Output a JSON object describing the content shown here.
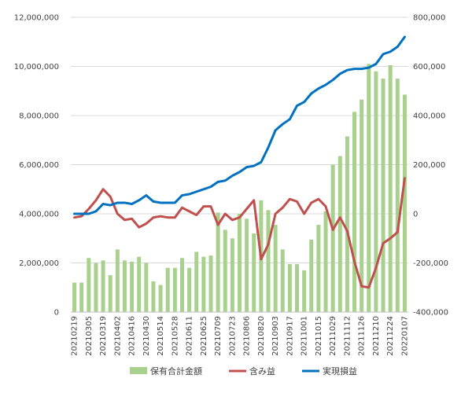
{
  "chart_data": {
    "type": "bar+line",
    "title": "",
    "x_tick_labels": [
      "20210219",
      "20210305",
      "20210319",
      "20210402",
      "20210416",
      "20210430",
      "20210514",
      "20210528",
      "20210611",
      "20210625",
      "20210709",
      "20210723",
      "20210806",
      "20210820",
      "20210903",
      "20210917",
      "20211001",
      "20211015",
      "20211029",
      "20211112",
      "20211126",
      "20211210",
      "20211224",
      "20220107"
    ],
    "y_left": {
      "min": 0,
      "max": 12000000,
      "step": 2000000,
      "tick_labels": [
        "0",
        "2,000,000",
        "4,000,000",
        "6,000,000",
        "8,000,000",
        "10,000,000",
        "12,000,000"
      ]
    },
    "y_right": {
      "min": -400000,
      "max": 800000,
      "step": 200000,
      "tick_labels": [
        "-400,000",
        "-200,000",
        "0",
        "200,000",
        "400,000",
        "600,000",
        "800,000"
      ]
    },
    "legend_position": "bottom",
    "series": [
      {
        "name": "保有合計金額",
        "kind": "bar",
        "axis": "left",
        "color": "#a9d18e",
        "values": [
          1200000,
          1200000,
          2200000,
          2000000,
          2100000,
          1500000,
          2550000,
          2100000,
          2050000,
          2250000,
          2000000,
          1250000,
          1100000,
          1800000,
          1800000,
          2200000,
          1800000,
          2450000,
          2250000,
          2300000,
          4050000,
          3350000,
          3000000,
          4000000,
          3800000,
          3200000,
          4550000,
          4150000,
          3550000,
          2550000,
          1950000,
          1950000,
          1700000,
          2950000,
          3550000,
          4100000,
          6000000,
          6350000,
          7150000,
          8150000,
          8650000,
          10100000,
          9800000,
          9500000,
          10050000,
          9500000,
          8850000
        ]
      },
      {
        "name": "含み益",
        "kind": "line",
        "axis": "right",
        "color": "#c0504d",
        "values": [
          -15000,
          -10000,
          20000,
          55000,
          100000,
          70000,
          0,
          -25000,
          -20000,
          -55000,
          -40000,
          -15000,
          -10000,
          -15000,
          -15000,
          25000,
          10000,
          -5000,
          30000,
          30000,
          -45000,
          0,
          -25000,
          -15000,
          20000,
          55000,
          -185000,
          -125000,
          0,
          25000,
          60000,
          50000,
          0,
          45000,
          60000,
          30000,
          -65000,
          -15000,
          -70000,
          -195000,
          -295000,
          -300000,
          -220000,
          -120000,
          -100000,
          -75000,
          145000
        ]
      },
      {
        "name": "実現損益",
        "kind": "line",
        "axis": "right",
        "color": "#0070c0",
        "values": [
          0,
          0,
          0,
          10000,
          40000,
          35000,
          45000,
          45000,
          40000,
          55000,
          75000,
          50000,
          45000,
          45000,
          45000,
          75000,
          80000,
          90000,
          100000,
          110000,
          130000,
          135000,
          155000,
          170000,
          190000,
          195000,
          210000,
          270000,
          340000,
          365000,
          385000,
          440000,
          455000,
          490000,
          510000,
          525000,
          545000,
          570000,
          585000,
          590000,
          590000,
          595000,
          610000,
          650000,
          660000,
          680000,
          720000
        ]
      }
    ]
  }
}
